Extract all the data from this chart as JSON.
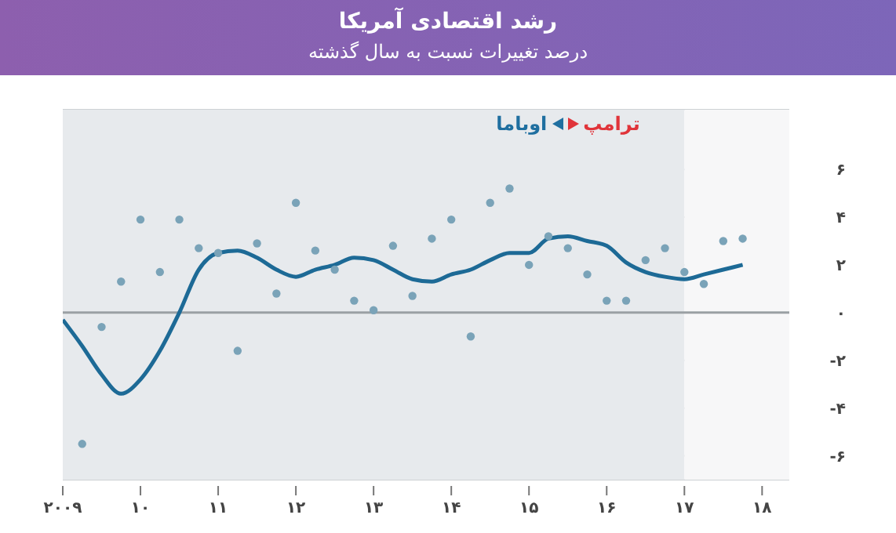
{
  "chart_data": {
    "type": "line",
    "title": "رشد اقتصادی آمریکا",
    "subtitle": "درصد تغییرات نسبت به سال گذشته",
    "series": [
      {
        "color": "#1d6a96",
        "x": [
          2009,
          2009.25,
          2009.5,
          2009.75,
          2010,
          2010.25,
          2010.5,
          2010.75,
          2011,
          2011.25,
          2011.5,
          2011.75,
          2012,
          2012.25,
          2012.5,
          2012.75,
          2013,
          2013.25,
          2013.5,
          2013.75,
          2014,
          2014.25,
          2014.5,
          2014.75,
          2015,
          2015.25,
          2015.5,
          2015.75,
          2016,
          2016.25,
          2016.5,
          2016.75,
          2017,
          2017.25,
          2017.5,
          2017.75
        ],
        "values": [
          -0.3,
          -1.4,
          -2.6,
          -3.4,
          -2.8,
          -1.6,
          0,
          1.8,
          2.5,
          2.6,
          2.3,
          1.8,
          1.5,
          1.8,
          2,
          2.3,
          2.2,
          1.8,
          1.4,
          1.3,
          1.6,
          1.8,
          2.2,
          2.5,
          2.5,
          3.1,
          3.2,
          3,
          2.8,
          2.1,
          1.7,
          1.5,
          1.4,
          1.6,
          1.8,
          2
        ],
        "marker": "none",
        "line_style": "solid"
      },
      {
        "type": "scatter",
        "color": "#7aa3b8",
        "x": [
          2009.25,
          2009.5,
          2009.75,
          2010,
          2010.25,
          2010.5,
          2010.75,
          2011,
          2011.25,
          2011.5,
          2011.75,
          2012,
          2012.25,
          2012.5,
          2012.75,
          2013,
          2013.25,
          2013.5,
          2013.75,
          2014,
          2014.25,
          2014.5,
          2014.75,
          2015,
          2015.25,
          2015.5,
          2015.75,
          2016,
          2016.25,
          2016.5,
          2016.75,
          2017,
          2017.25,
          2017.5,
          2017.75
        ],
        "values": [
          -5.5,
          -0.6,
          1.3,
          3.9,
          1.7,
          3.9,
          2.7,
          2.5,
          -1.6,
          2.9,
          0.8,
          4.6,
          2.6,
          1.8,
          0.5,
          0.1,
          2.8,
          0.7,
          3.1,
          3.9,
          -1,
          4.6,
          5.2,
          2,
          3.2,
          2.7,
          1.6,
          0.5,
          0.5,
          2.2,
          2.7,
          1.7,
          1.2,
          3,
          3.1
        ],
        "marker": "circle"
      }
    ],
    "xlim": [
      2009,
      2018.35
    ],
    "xticks": [
      {
        "value": 2009,
        "label": "۲۰۰۹"
      },
      {
        "value": 2010,
        "label": "۱۰"
      },
      {
        "value": 2011,
        "label": "۱۱"
      },
      {
        "value": 2012,
        "label": "۱۲"
      },
      {
        "value": 2013,
        "label": "۱۳"
      },
      {
        "value": 2014,
        "label": "۱۴"
      },
      {
        "value": 2015,
        "label": "۱۵"
      },
      {
        "value": 2016,
        "label": "۱۶"
      },
      {
        "value": 2017,
        "label": "۱۷"
      },
      {
        "value": 2018,
        "label": "۱۸"
      }
    ],
    "ylim": [
      -7,
      8.5
    ],
    "yticks": [
      {
        "value": -6,
        "label": "-۶"
      },
      {
        "value": -4,
        "label": "-۴"
      },
      {
        "value": -2,
        "label": "-۲"
      },
      {
        "value": 0,
        "label": "۰"
      },
      {
        "value": 2,
        "label": "۲"
      },
      {
        "value": 4,
        "label": "۴"
      },
      {
        "value": 6,
        "label": "۶"
      }
    ],
    "ref_lines": [
      {
        "axis": "y",
        "value": 0,
        "color": "#9aa0a4"
      }
    ],
    "bands": [
      {
        "axis": "x",
        "from": 2009,
        "to": 2017,
        "label": "اوباما",
        "color": "#e7eaed"
      },
      {
        "axis": "x",
        "from": 2017,
        "to": 2018.35,
        "label": "ترامپ",
        "color": "#f7f7f8"
      }
    ],
    "grid": "y"
  }
}
